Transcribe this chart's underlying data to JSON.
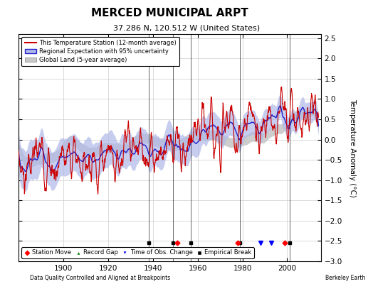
{
  "title": "MERCED MUNICIPAL ARPT",
  "subtitle": "37.286 N, 120.512 W (United States)",
  "ylabel": "Temperature Anomaly (°C)",
  "footer_left": "Data Quality Controlled and Aligned at Breakpoints",
  "footer_right": "Berkeley Earth",
  "xlim": [
    1880,
    2015
  ],
  "ylim": [
    -3.0,
    2.6
  ],
  "yticks": [
    -3,
    -2.5,
    -2,
    -1.5,
    -1,
    -0.5,
    0,
    0.5,
    1,
    1.5,
    2,
    2.5
  ],
  "xticks": [
    1900,
    1920,
    1940,
    1960,
    1980,
    2000
  ],
  "bg_color": "#ffffff",
  "plot_bg": "#ffffff",
  "grid_color": "#cccccc",
  "station_moves": [
    1951,
    1978,
    1999
  ],
  "time_of_obs": [
    1988,
    1993
  ],
  "empirical_breaks": [
    1938,
    1949,
    1957,
    1979,
    2001
  ],
  "record_gaps": [],
  "line_colors_vertical": [
    "#1a1a1a"
  ],
  "red_color": "#cc0000",
  "blue_color": "#2222cc",
  "blue_band_color": "#b0b8e8",
  "gray_band_color": "#c8c8c8"
}
